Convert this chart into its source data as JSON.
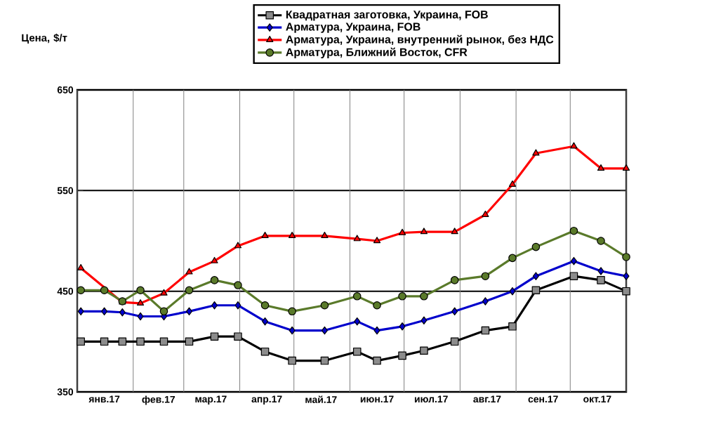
{
  "chart_data": {
    "type": "line",
    "ylabel": "Цена, $/т",
    "x": [
      "2017-01-03",
      "2017-01-16",
      "2017-01-26",
      "2017-02-05",
      "2017-02-18",
      "2017-03-04",
      "2017-03-18",
      "2017-03-31",
      "2017-04-15",
      "2017-04-30",
      "2017-05-18",
      "2017-06-05",
      "2017-06-16",
      "2017-06-30",
      "2017-07-12",
      "2017-07-29",
      "2017-08-15",
      "2017-08-30",
      "2017-09-12",
      "2017-10-03",
      "2017-10-18",
      "2017-11-01"
    ],
    "series": [
      {
        "name": "Квадратная заготовка, Украина, FOB",
        "color": "#000000",
        "marker": "square",
        "values": [
          400,
          400,
          400,
          400,
          400,
          400,
          405,
          405,
          390,
          381,
          381,
          390,
          381,
          386,
          391,
          400,
          411,
          415,
          451,
          465,
          461,
          450
        ]
      },
      {
        "name": "Арматура, Украина, FOB",
        "color": "#0000cc",
        "marker": "diamond",
        "values": [
          430,
          430,
          429,
          425,
          425,
          430,
          436,
          436,
          420,
          411,
          411,
          420,
          411,
          415,
          421,
          430,
          440,
          450,
          465,
          480,
          470,
          465
        ]
      },
      {
        "name": "Арматура, Украина, внутренний рынок, без НДС",
        "color": "#ff0000",
        "marker": "triangle",
        "values": [
          473,
          null,
          439,
          438,
          448,
          469,
          480,
          495,
          505,
          505,
          505,
          502,
          500,
          508,
          509,
          509,
          526,
          556,
          587,
          594,
          572,
          572
        ]
      },
      {
        "name": "Арматура, Ближний Восток, CFR",
        "color": "#5a7a2a",
        "marker": "circle",
        "values": [
          451,
          451,
          440,
          451,
          430,
          451,
          461,
          456,
          436,
          430,
          436,
          445,
          436,
          445,
          445,
          461,
          465,
          483,
          494,
          510,
          500,
          484
        ]
      }
    ],
    "xlim": [
      "2017-01-01",
      "2017-11-01"
    ],
    "xticks": [
      {
        "value": "2017-01-01",
        "label": null
      },
      {
        "value": "2017-01-16",
        "label": "янв.17"
      },
      {
        "value": "2017-02-01",
        "label": null
      },
      {
        "value": "2017-02-15",
        "label": "фев.17"
      },
      {
        "value": "2017-03-01",
        "label": null
      },
      {
        "value": "2017-03-16",
        "label": "мар.17"
      },
      {
        "value": "2017-04-01",
        "label": null
      },
      {
        "value": "2017-04-16",
        "label": "апр.17"
      },
      {
        "value": "2017-05-01",
        "label": null
      },
      {
        "value": "2017-05-16",
        "label": "май.17"
      },
      {
        "value": "2017-06-01",
        "label": null
      },
      {
        "value": "2017-06-16",
        "label": "июн.17"
      },
      {
        "value": "2017-07-01",
        "label": null
      },
      {
        "value": "2017-07-16",
        "label": "июл.17"
      },
      {
        "value": "2017-08-01",
        "label": null
      },
      {
        "value": "2017-08-16",
        "label": "авг.17"
      },
      {
        "value": "2017-09-01",
        "label": null
      },
      {
        "value": "2017-09-16",
        "label": "сен.17"
      },
      {
        "value": "2017-10-01",
        "label": null
      },
      {
        "value": "2017-10-16",
        "label": "окт.17"
      },
      {
        "value": "2017-11-01",
        "label": null
      }
    ],
    "ylim": [
      350,
      650
    ],
    "yticks": [
      350,
      450,
      550,
      650
    ],
    "grid": true,
    "legend": "top",
    "line_style": "solid"
  }
}
